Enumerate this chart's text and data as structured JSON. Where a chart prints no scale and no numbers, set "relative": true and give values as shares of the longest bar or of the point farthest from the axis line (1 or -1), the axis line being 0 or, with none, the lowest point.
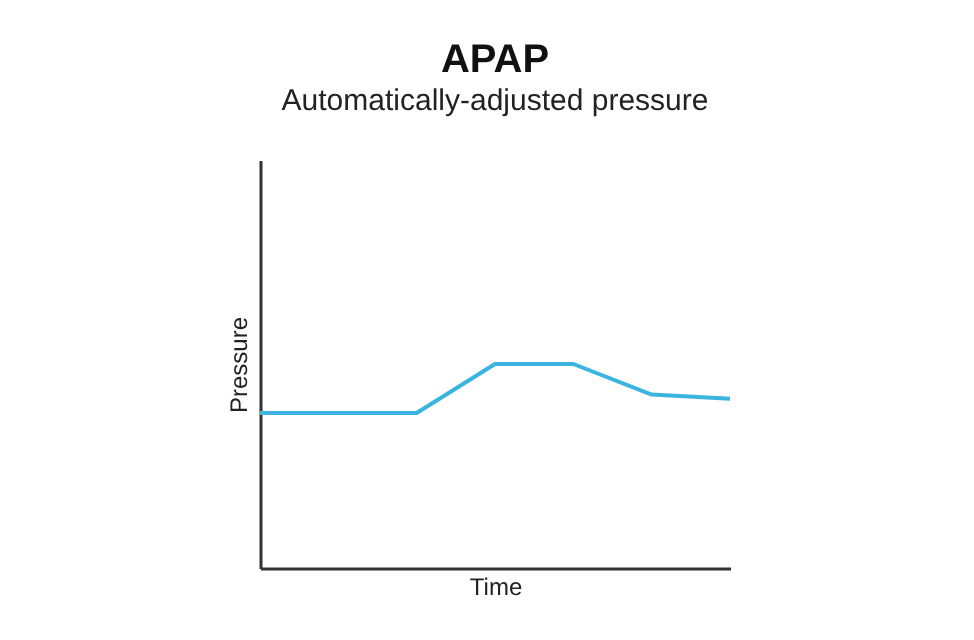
{
  "chart_data": {
    "type": "line",
    "title": "APAP",
    "subtitle": "Automatically-adjusted pressure",
    "xlabel": "Time",
    "ylabel": "Pressure",
    "relative": true,
    "categories": [
      null,
      null,
      null,
      null,
      null,
      null,
      null
    ],
    "series": [
      {
        "color": "#3bb4e0",
        "values": [
          0.76,
          0.76,
          0.76,
          1,
          1,
          0.85,
          0.83
        ]
      }
    ],
    "grid": false,
    "marker": "none",
    "line_style": "solid"
  }
}
